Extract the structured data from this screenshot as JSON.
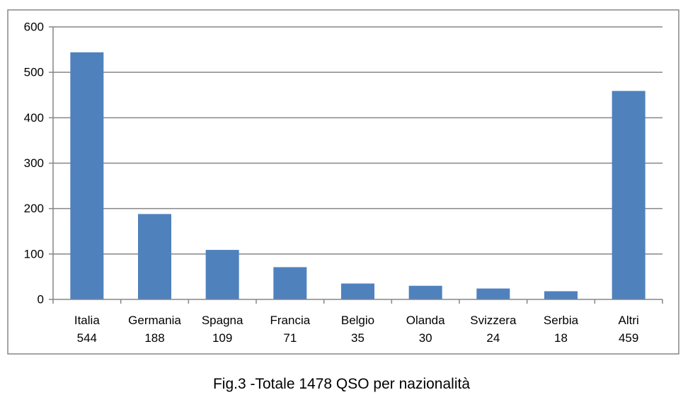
{
  "caption": "Fig.3 -Totale 1478 QSO per nazionalità",
  "chart_data": {
    "type": "bar",
    "categories": [
      "Italia",
      "Germania",
      "Spagna",
      "Francia",
      "Belgio",
      "Olanda",
      "Svizzera",
      "Serbia",
      "Altri"
    ],
    "values": [
      544,
      188,
      109,
      71,
      35,
      30,
      24,
      18,
      459
    ],
    "category_value_labels": [
      "544",
      "188",
      "109",
      "71",
      "35",
      "30",
      "24",
      "18",
      "459"
    ],
    "yticks": [
      "0",
      "100",
      "200",
      "300",
      "400",
      "500",
      "600"
    ],
    "ylim": [
      0,
      600
    ],
    "grid": true,
    "legend": "none",
    "colors": {
      "bar": "#4F81BD",
      "grid": "#868686",
      "frame": "#868686"
    }
  }
}
